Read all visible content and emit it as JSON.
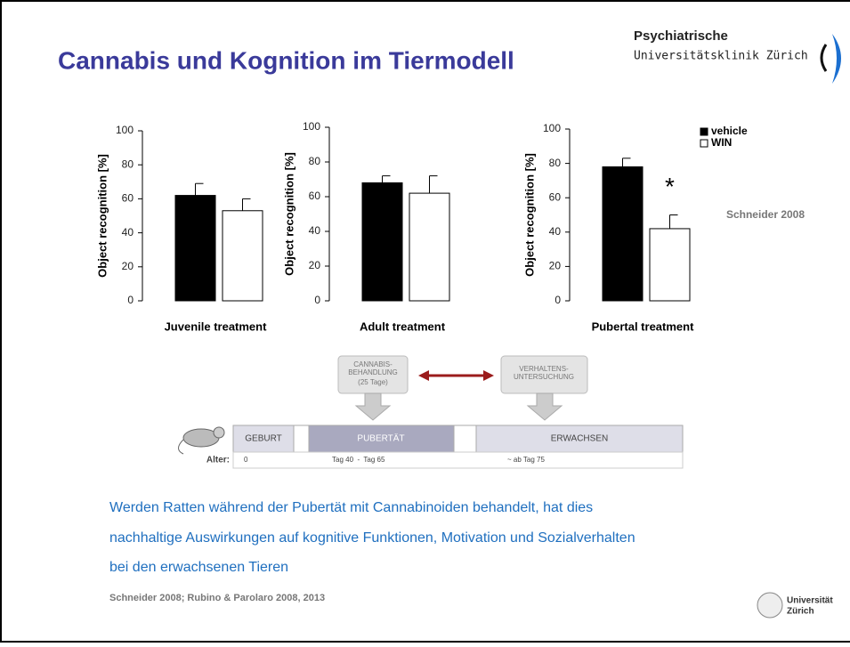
{
  "header": {
    "title": "Cannabis und Kognition im Tiermodell",
    "logo_line1": "Psychiatrische",
    "logo_line2": "Universitätsklinik Zürich"
  },
  "chart_data": [
    {
      "type": "bar",
      "xlabel": "Juvenile treatment",
      "ylabel": "Object recognition [%]",
      "categories": [
        null
      ],
      "series": [
        {
          "color": "#000000",
          "values": [
            62
          ],
          "errors": [
            7
          ]
        },
        {
          "color": "#ffffff",
          "values": [
            53
          ],
          "errors": [
            7
          ]
        }
      ],
      "ylim": [
        0,
        100
      ],
      "yticks": [
        0,
        20,
        40,
        60,
        80,
        100
      ]
    },
    {
      "type": "bar",
      "xlabel": "Adult treatment",
      "ylabel": "Object recognition [%]",
      "categories": [
        null
      ],
      "series": [
        {
          "color": "#000000",
          "values": [
            68
          ],
          "errors": [
            4
          ]
        },
        {
          "color": "#ffffff",
          "values": [
            62
          ],
          "errors": [
            10
          ]
        }
      ],
      "ylim": [
        0,
        100
      ],
      "yticks": [
        0,
        20,
        40,
        60,
        80,
        100
      ]
    },
    {
      "type": "bar",
      "xlabel": "Pubertal treatment",
      "ylabel": "Object recognition [%]",
      "categories": [
        null
      ],
      "series": [
        {
          "name": "vehicle",
          "color": "#000000",
          "values": [
            78
          ],
          "errors": [
            5
          ]
        },
        {
          "name": "WIN",
          "color": "#ffffff",
          "values": [
            42
          ],
          "errors": [
            8
          ]
        }
      ],
      "ylim": [
        0,
        100
      ],
      "yticks": [
        0,
        20,
        40,
        60,
        80,
        100
      ],
      "annotation": "*"
    }
  ],
  "side_note": "Schneider 2008",
  "timeline": {
    "treatment_box": [
      "CANNABIS-",
      "BEHANDLUNG",
      "(25 Tage)"
    ],
    "test_box": [
      "VERHALTENS-",
      "UNTERSUCHUNG"
    ],
    "stages": [
      "GEBURT",
      "PUBERTÄT",
      "ERWACHSEN"
    ],
    "age_label": "Alter:",
    "ages": [
      "0",
      "Tag 40  -  Tag 65",
      "~ ab Tag 75"
    ]
  },
  "caption": [
    "Werden Ratten während der Pubertät mit Cannabinoiden behandelt, hat dies",
    "nachhaltige Auswirkungen auf kognitive Funktionen, Motivation und Sozialverhalten",
    "bei den erwachsenen Tieren"
  ],
  "reference": "Schneider 2008; Rubino & Parolaro 2008, 2013",
  "footer_logo": [
    "Universität",
    "Zürich"
  ]
}
